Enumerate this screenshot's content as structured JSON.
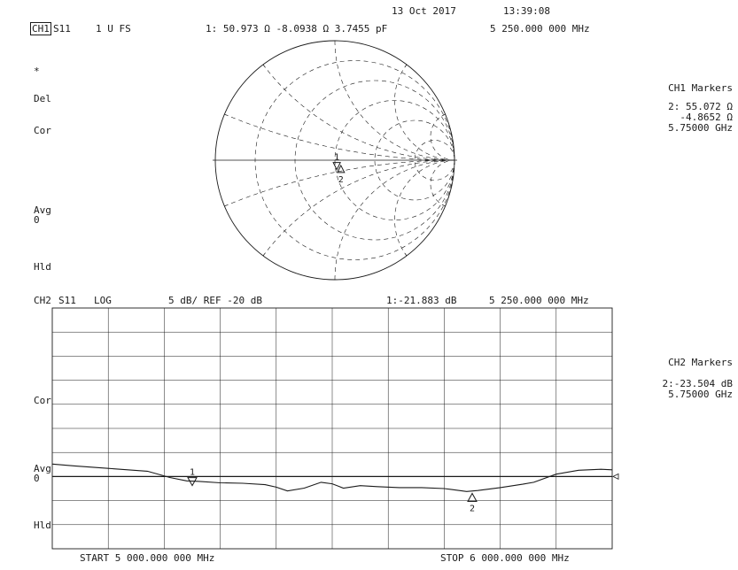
{
  "header": {
    "date": "13 Oct 2017",
    "time": "13:39:08"
  },
  "ch1": {
    "channel": "CH1",
    "param": "S11",
    "scale": "1 U FS",
    "marker1_readout": "1: 50.973 Ω   -8.0938 Ω  3.7455 pF",
    "marker1_freq": "5 250.000 000 MHz",
    "left_labels": {
      "star": "*",
      "del": "Del",
      "cor": "Cor",
      "avg": "Avg",
      "avg_n": "0",
      "hld": "Hld"
    },
    "markers_title": "CH1 Markers",
    "marker2_line1": "2: 55.072 Ω",
    "marker2_line2": "-4.8652 Ω",
    "marker2_line3": "5.75000 GHz"
  },
  "ch2": {
    "channel": "CH2",
    "param": "S11",
    "format": "LOG",
    "scale": "5 dB/ REF -20 dB",
    "marker1_readout": "1:-21.883 dB",
    "marker1_freq": "5 250.000 000 MHz",
    "left_labels": {
      "cor": "Cor",
      "avg": "Avg",
      "avg_n": "0",
      "hld": "Hld"
    },
    "markers_title": "CH2 Markers",
    "marker2_line1": "2:-23.504 dB",
    "marker2_line2": "5.75000 GHz",
    "start": "START 5 000.000 000 MHz",
    "stop": "STOP 6 000.000 000 MHz"
  },
  "chart_data": [
    {
      "type": "smith",
      "title": "CH1 S11 1 U FS",
      "markers": [
        {
          "id": "1",
          "r_ohm": 50.973,
          "x_ohm": -8.0938,
          "freq_mhz": 5250
        },
        {
          "id": "2",
          "r_ohm": 55.072,
          "x_ohm": -4.8652,
          "freq_mhz": 5750
        }
      ]
    },
    {
      "type": "line",
      "title": "CH2 S11 LOG 5 dB/ REF -20 dB",
      "xlabel": "MHz",
      "ylabel": "dB",
      "xlim": [
        5000,
        6000
      ],
      "ylim": [
        -35,
        15
      ],
      "reference_db": -20,
      "grid": true,
      "series": [
        {
          "x": [
            5000,
            5040,
            5100,
            5170,
            5210,
            5240,
            5260,
            5300,
            5340,
            5380,
            5400,
            5420,
            5450,
            5480,
            5500,
            5520,
            5550,
            5580,
            5620,
            5660,
            5700,
            5740,
            5760,
            5800,
            5840,
            5860,
            5900,
            5940,
            5980,
            6000
          ],
          "values": [
            -17.4,
            -17.8,
            -18.3,
            -18.9,
            -20.2,
            -20.9,
            -21.0,
            -21.3,
            -21.4,
            -21.7,
            -22.2,
            -23.0,
            -22.4,
            -21.2,
            -21.5,
            -22.4,
            -21.9,
            -22.1,
            -22.3,
            -22.3,
            -22.5,
            -23.1,
            -22.9,
            -22.3,
            -21.6,
            -21.2,
            -19.5,
            -18.7,
            -18.5,
            -18.6
          ]
        }
      ],
      "markers": [
        {
          "id": "1",
          "x": 5250,
          "y": -21.883
        },
        {
          "id": "2",
          "x": 5750,
          "y": -23.504
        }
      ]
    }
  ]
}
